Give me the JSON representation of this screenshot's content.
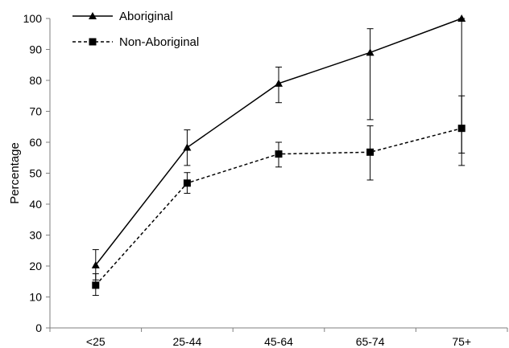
{
  "chart_data": {
    "type": "line",
    "title": "",
    "xlabel": "",
    "ylabel": "Percentage",
    "categories": [
      "<25",
      "25-44",
      "45-64",
      "65-74",
      "75+"
    ],
    "ylim": [
      0,
      100
    ],
    "yticks": [
      0,
      10,
      20,
      30,
      40,
      50,
      60,
      70,
      80,
      90,
      100
    ],
    "grid": false,
    "legend_position": "top-left",
    "series": [
      {
        "name": "Aboriginal",
        "line_style": "solid",
        "marker": "triangle",
        "color": "#000000",
        "values": [
          20.3,
          58.3,
          79.0,
          89.0,
          100.0
        ],
        "error_upper": [
          25.3,
          64.0,
          84.3,
          96.7,
          100.0
        ],
        "error_lower": [
          15.5,
          52.5,
          72.8,
          67.3,
          56.5
        ]
      },
      {
        "name": "Non-Aboriginal",
        "line_style": "dashed",
        "marker": "square",
        "color": "#000000",
        "values": [
          13.8,
          46.8,
          56.2,
          56.8,
          64.5
        ],
        "error_upper": [
          17.5,
          50.2,
          60.0,
          65.3,
          75.0
        ],
        "error_lower": [
          10.5,
          43.5,
          52.0,
          47.8,
          52.5
        ]
      }
    ]
  }
}
